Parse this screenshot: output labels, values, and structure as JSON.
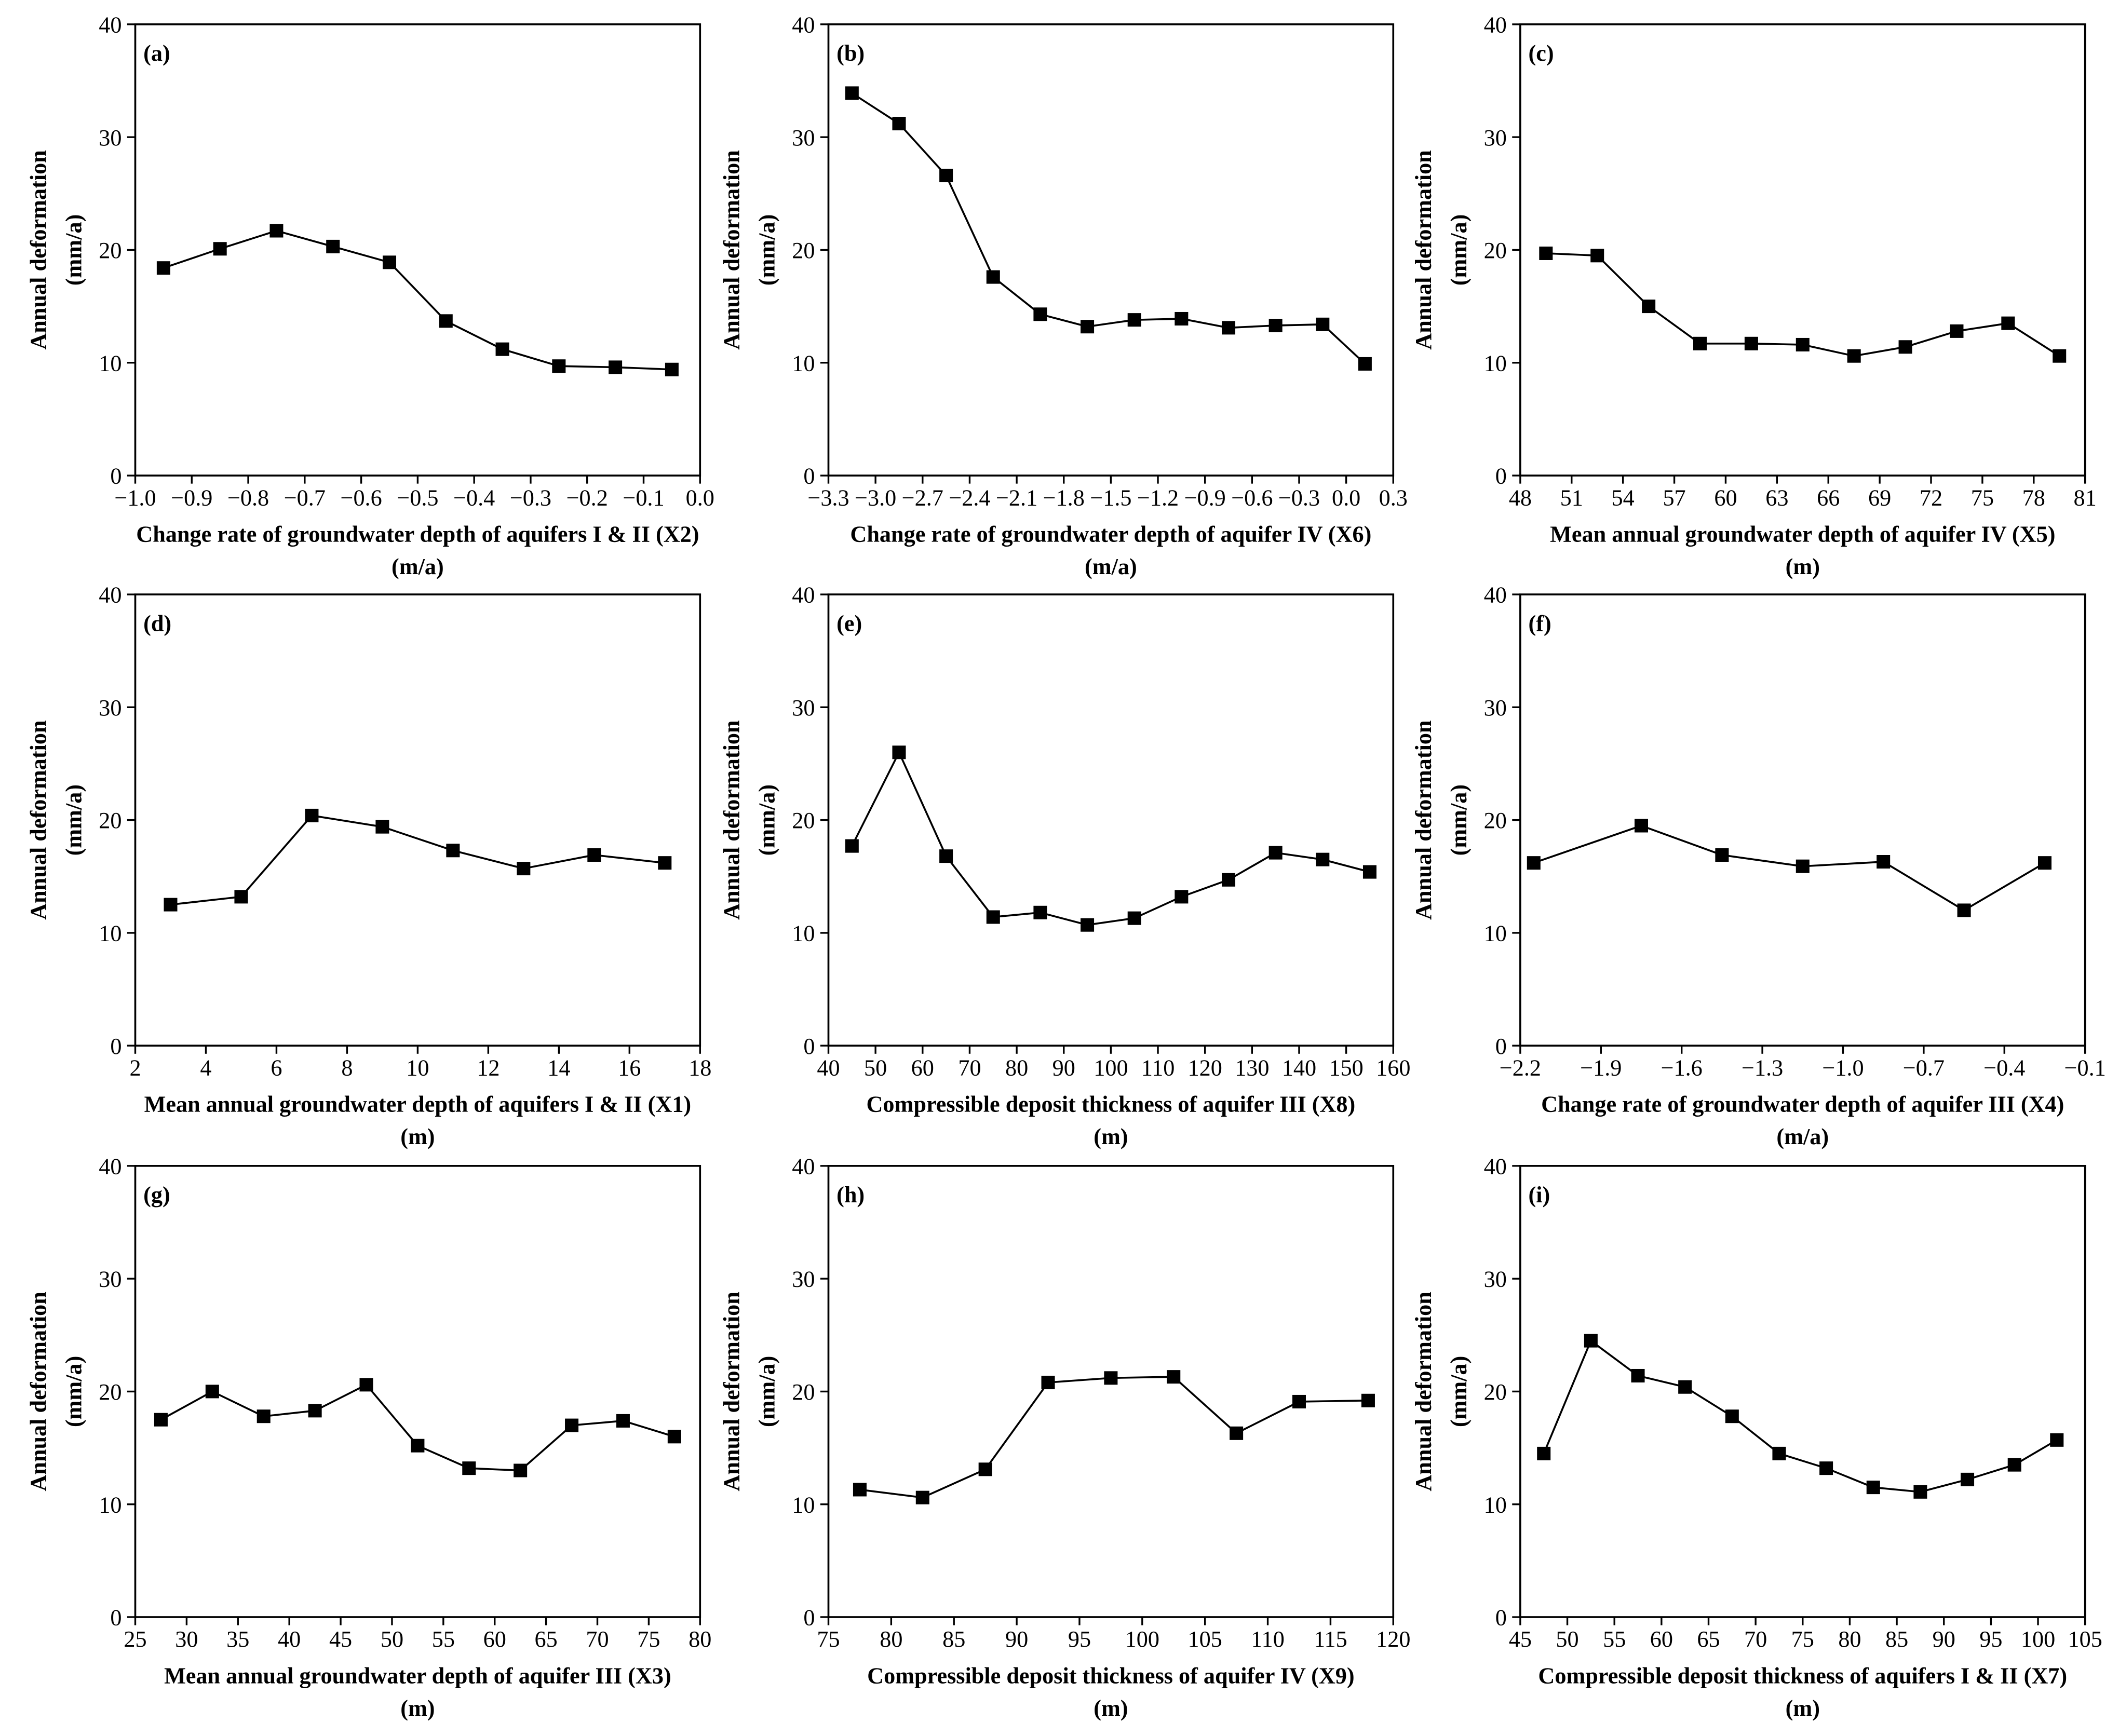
{
  "chart_data": [
    {
      "type": "line",
      "panel_label": "(a)",
      "marker": "square",
      "color": "#000000",
      "xlabel": [
        "Change rate of groundwater depth of aquifers I & II (X2)",
        "(m/a)"
      ],
      "ylabel": [
        "Annual deformation",
        "(mm/a)"
      ],
      "x": [
        -0.95,
        -0.85,
        -0.75,
        -0.65,
        -0.55,
        -0.45,
        -0.35,
        -0.25,
        -0.15,
        -0.05
      ],
      "values": [
        18.4,
        20.1,
        21.7,
        20.3,
        18.9,
        13.7,
        11.2,
        9.7,
        9.6,
        9.4
      ],
      "xlim": [
        -1.0,
        0.0
      ],
      "xticks": [
        {
          "value": -1.0,
          "label": "−1.0"
        },
        {
          "value": -0.9,
          "label": "−0.9"
        },
        {
          "value": -0.8,
          "label": "−0.8"
        },
        {
          "value": -0.7,
          "label": "−0.7"
        },
        {
          "value": -0.6,
          "label": "−0.6"
        },
        {
          "value": -0.5,
          "label": "−0.5"
        },
        {
          "value": -0.4,
          "label": "−0.4"
        },
        {
          "value": -0.3,
          "label": "−0.3"
        },
        {
          "value": -0.2,
          "label": "−0.2"
        },
        {
          "value": -0.1,
          "label": "−0.1"
        },
        {
          "value": 0.0,
          "label": "0.0"
        }
      ],
      "ylim": [
        0,
        40
      ],
      "yticks": [
        0,
        10,
        20,
        30,
        40
      ]
    },
    {
      "type": "line",
      "panel_label": "(b)",
      "marker": "square",
      "color": "#000000",
      "xlabel": [
        "Change rate of groundwater depth of aquifer IV (X6)",
        "(m/a)"
      ],
      "ylabel": [
        "Annual deformation",
        "(mm/a)"
      ],
      "x": [
        -3.15,
        -2.85,
        -2.55,
        -2.25,
        -1.95,
        -1.65,
        -1.35,
        -1.05,
        -0.75,
        -0.45,
        -0.15,
        0.12
      ],
      "values": [
        33.9,
        31.2,
        26.6,
        17.6,
        14.3,
        13.2,
        13.8,
        13.9,
        13.1,
        13.3,
        13.4,
        9.9
      ],
      "xlim": [
        -3.3,
        0.3
      ],
      "xticks": [
        {
          "value": -3.3,
          "label": "−3.3"
        },
        {
          "value": -3.0,
          "label": "−3.0"
        },
        {
          "value": -2.7,
          "label": "−2.7"
        },
        {
          "value": -2.4,
          "label": "−2.4"
        },
        {
          "value": -2.1,
          "label": "−2.1"
        },
        {
          "value": -1.8,
          "label": "−1.8"
        },
        {
          "value": -1.5,
          "label": "−1.5"
        },
        {
          "value": -1.2,
          "label": "−1.2"
        },
        {
          "value": -0.9,
          "label": "−0.9"
        },
        {
          "value": -0.6,
          "label": "−0.6"
        },
        {
          "value": -0.3,
          "label": "−0.3"
        },
        {
          "value": 0.0,
          "label": "0.0"
        },
        0.3
      ],
      "ylim": [
        0,
        40
      ],
      "yticks": [
        0,
        10,
        20,
        30,
        40
      ]
    },
    {
      "type": "line",
      "panel_label": "(c)",
      "marker": "square",
      "color": "#000000",
      "xlabel": [
        "Mean annual groundwater depth of aquifer IV (X5)",
        "(m)"
      ],
      "ylabel": [
        "Annual deformation",
        "(mm/a)"
      ],
      "x": [
        49.5,
        52.5,
        55.5,
        58.5,
        61.5,
        64.5,
        67.5,
        70.5,
        73.5,
        76.5,
        79.5
      ],
      "values": [
        19.7,
        19.5,
        15.0,
        11.7,
        11.7,
        11.6,
        10.6,
        11.4,
        12.8,
        13.5,
        10.6
      ],
      "xlim": [
        48,
        81
      ],
      "xticks": [
        48,
        51,
        54,
        57,
        60,
        63,
        66,
        69,
        72,
        75,
        78,
        81
      ],
      "ylim": [
        0,
        40
      ],
      "yticks": [
        0,
        10,
        20,
        30,
        40
      ]
    },
    {
      "type": "line",
      "panel_label": "(d)",
      "marker": "square",
      "color": "#000000",
      "xlabel": [
        "Mean annual groundwater depth of aquifers I & II (X1)",
        "(m)"
      ],
      "ylabel": [
        "Annual deformation",
        "(mm/a)"
      ],
      "x": [
        3,
        5,
        7,
        9,
        11,
        13,
        15,
        17
      ],
      "values": [
        12.5,
        13.2,
        20.4,
        19.4,
        17.3,
        15.7,
        16.9,
        16.2
      ],
      "xlim": [
        2,
        18
      ],
      "xticks": [
        2,
        4,
        6,
        8,
        10,
        12,
        14,
        16,
        18
      ],
      "ylim": [
        0,
        40
      ],
      "yticks": [
        0,
        10,
        20,
        30,
        40
      ]
    },
    {
      "type": "line",
      "panel_label": "(e)",
      "marker": "square",
      "color": "#000000",
      "xlabel": [
        "Compressible deposit thickness of aquifer III (X8)",
        "(m)"
      ],
      "ylabel": [
        "Annual deformation",
        "(mm/a)"
      ],
      "x": [
        45,
        55,
        65,
        75,
        85,
        95,
        105,
        115,
        125,
        135,
        145,
        155
      ],
      "values": [
        17.7,
        26.0,
        16.8,
        11.4,
        11.8,
        10.7,
        11.3,
        13.2,
        14.7,
        17.1,
        16.5,
        15.4
      ],
      "xlim": [
        40,
        160
      ],
      "xticks": [
        40,
        50,
        60,
        70,
        80,
        90,
        100,
        110,
        120,
        130,
        140,
        150,
        160
      ],
      "ylim": [
        0,
        40
      ],
      "yticks": [
        0,
        10,
        20,
        30,
        40
      ]
    },
    {
      "type": "line",
      "panel_label": "(f)",
      "marker": "square",
      "color": "#000000",
      "xlabel": [
        "Change rate of groundwater depth of aquifer III (X4)",
        "(m/a)"
      ],
      "ylabel": [
        "Annual deformation",
        "(mm/a)"
      ],
      "x": [
        -2.15,
        -1.75,
        -1.45,
        -1.15,
        -0.85,
        -0.55,
        -0.25
      ],
      "values": [
        16.2,
        19.5,
        16.9,
        15.9,
        16.3,
        12.0,
        16.2
      ],
      "xlim": [
        -2.2,
        -0.1
      ],
      "xticks": [
        {
          "value": -2.2,
          "label": "−2.2"
        },
        {
          "value": -1.9,
          "label": "−1.9"
        },
        {
          "value": -1.6,
          "label": "−1.6"
        },
        {
          "value": -1.3,
          "label": "−1.3"
        },
        {
          "value": -1.0,
          "label": "−1.0"
        },
        {
          "value": -0.7,
          "label": "−0.7"
        },
        {
          "value": -0.4,
          "label": "−0.4"
        },
        {
          "value": -0.1,
          "label": "−0.1"
        }
      ],
      "ylim": [
        0,
        40
      ],
      "yticks": [
        0,
        10,
        20,
        30,
        40
      ]
    },
    {
      "type": "line",
      "panel_label": "(g)",
      "marker": "square",
      "color": "#000000",
      "xlabel": [
        "Mean annual groundwater depth of aquifer III (X3)",
        "(m)"
      ],
      "ylabel": [
        "Annual deformation",
        "(mm/a)"
      ],
      "x": [
        27.5,
        32.5,
        37.5,
        42.5,
        47.5,
        52.5,
        57.5,
        62.5,
        67.5,
        72.5,
        77.5
      ],
      "values": [
        17.5,
        20.0,
        17.8,
        18.3,
        20.6,
        15.2,
        13.2,
        13.0,
        17.0,
        17.4,
        16.0
      ],
      "xlim": [
        25,
        80
      ],
      "xticks": [
        25,
        30,
        35,
        40,
        45,
        50,
        55,
        60,
        65,
        70,
        75,
        80
      ],
      "ylim": [
        0,
        40
      ],
      "yticks": [
        0,
        10,
        20,
        30,
        40
      ]
    },
    {
      "type": "line",
      "panel_label": "(h)",
      "marker": "square",
      "color": "#000000",
      "xlabel": [
        "Compressible deposit thickness of aquifer IV (X9)",
        "(m)"
      ],
      "ylabel": [
        "Annual deformation",
        "(mm/a)"
      ],
      "x": [
        77.5,
        82.5,
        87.5,
        92.5,
        97.5,
        102.5,
        107.5,
        112.5,
        118
      ],
      "values": [
        11.3,
        10.6,
        13.1,
        20.8,
        21.2,
        21.3,
        16.3,
        19.1,
        19.2
      ],
      "xlim": [
        75,
        120
      ],
      "xticks": [
        75,
        80,
        85,
        90,
        95,
        100,
        105,
        110,
        115,
        120
      ],
      "ylim": [
        0,
        40
      ],
      "yticks": [
        0,
        10,
        20,
        30,
        40
      ]
    },
    {
      "type": "line",
      "panel_label": "(i)",
      "marker": "square",
      "color": "#000000",
      "xlabel": [
        "Compressible deposit thickness of aquifers I & II (X7)",
        "(m)"
      ],
      "ylabel": [
        "Annual deformation",
        "(mm/a)"
      ],
      "x": [
        47.5,
        52.5,
        57.5,
        62.5,
        67.5,
        72.5,
        77.5,
        82.5,
        87.5,
        92.5,
        97.5,
        102
      ],
      "values": [
        14.5,
        24.5,
        21.4,
        20.4,
        17.8,
        14.5,
        13.2,
        11.5,
        11.1,
        12.2,
        13.5,
        15.7
      ],
      "xlim": [
        45,
        105
      ],
      "xticks": [
        45,
        50,
        55,
        60,
        65,
        70,
        75,
        80,
        85,
        90,
        95,
        100,
        105
      ],
      "ylim": [
        0,
        40
      ],
      "yticks": [
        0,
        10,
        20,
        30,
        40
      ]
    }
  ]
}
